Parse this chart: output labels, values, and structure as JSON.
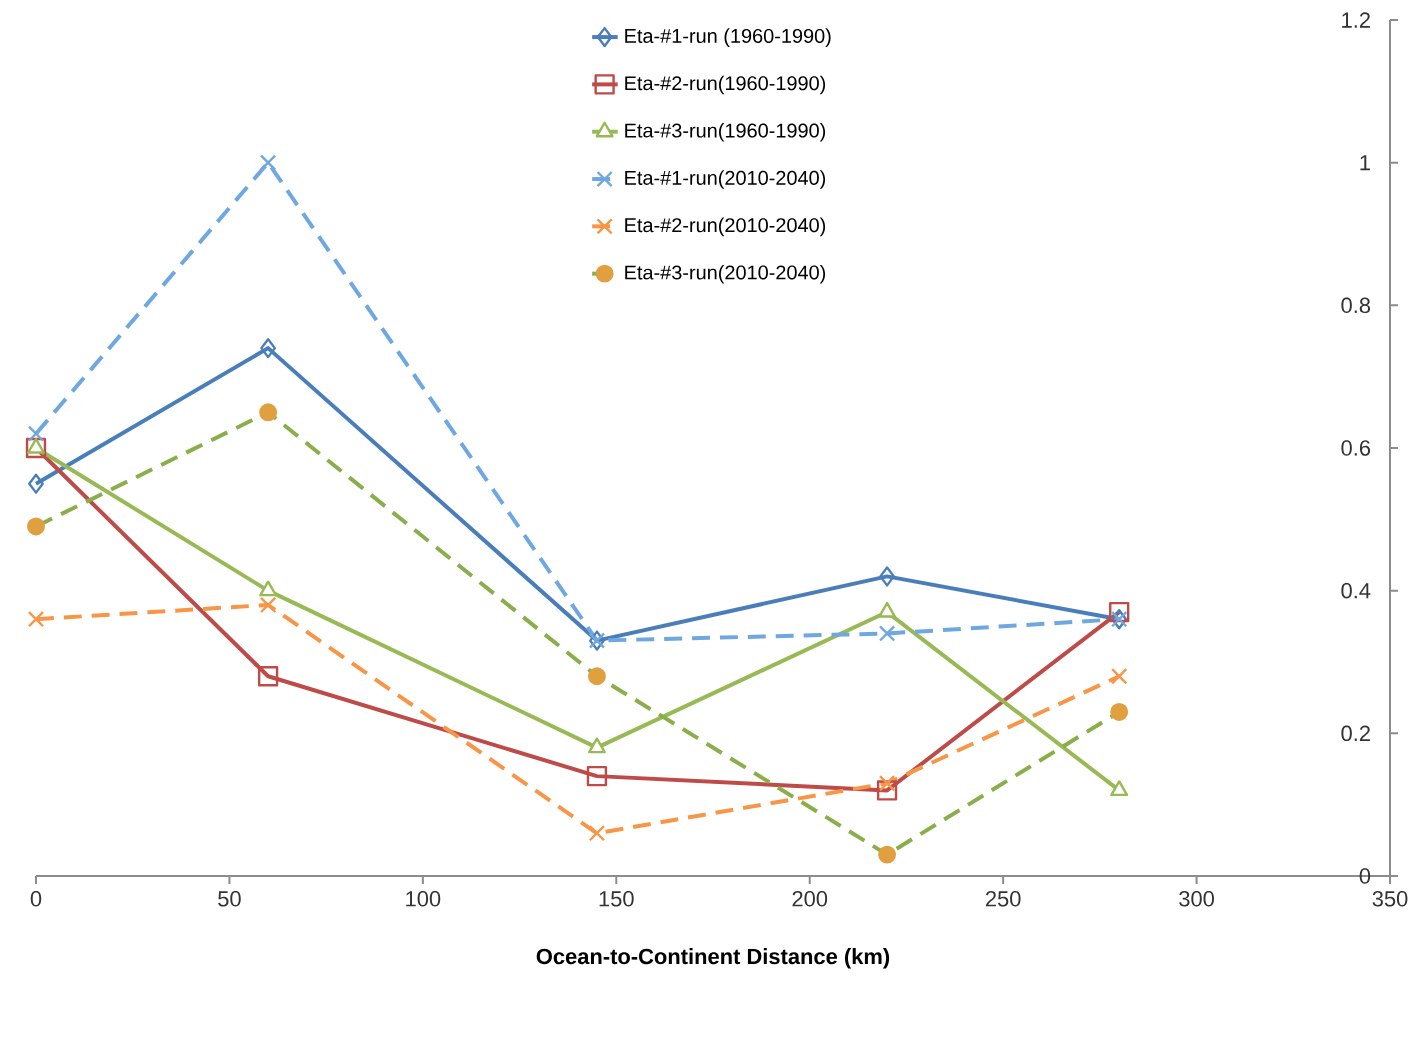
{
  "chart_data": {
    "type": "line",
    "xlabel": "Ocean-to-Continent Distance (km)",
    "x": [
      0,
      60,
      145,
      220,
      280
    ],
    "series": [
      {
        "name": "Eta-#1-run (1960-1990)",
        "color": "#4a7ebb",
        "marker": "diamond",
        "line_style": "solid",
        "values": [
          0.55,
          0.74,
          0.33,
          0.42,
          0.36
        ]
      },
      {
        "name": "Eta-#2-run(1960-1990)",
        "color": "#be4b48",
        "marker": "square",
        "line_style": "solid",
        "values": [
          0.6,
          0.28,
          0.14,
          0.12,
          0.37
        ]
      },
      {
        "name": "Eta-#3-run(1960-1990)",
        "color": "#98b954",
        "marker": "triangle",
        "line_style": "solid",
        "values": [
          0.6,
          0.4,
          0.18,
          0.37,
          0.12
        ]
      },
      {
        "name": "Eta-#1-run(2010-2040)",
        "color": "#6fa8e0",
        "marker": "cross",
        "line_style": "dashed",
        "values": [
          0.62,
          1.0,
          0.33,
          0.34,
          0.36
        ]
      },
      {
        "name": "Eta-#2-run(2010-2040)",
        "color": "#f79646",
        "marker": "cross",
        "line_style": "dashed",
        "values": [
          0.36,
          0.38,
          0.06,
          0.13,
          0.28
        ]
      },
      {
        "name": "Eta-#3-run(2010-2040)",
        "color": "#8aae4a",
        "marker": "circle",
        "line_style": "dashed",
        "colors": [
          "#e0a040",
          "#e0a040",
          "#e0a040",
          "#e0a040",
          "#e0a040"
        ],
        "values": [
          0.49,
          0.65,
          0.28,
          0.03,
          0.23
        ]
      }
    ],
    "xlim": [
      0,
      350
    ],
    "xticks": [
      0,
      50,
      100,
      150,
      200,
      250,
      300,
      350
    ],
    "ylim": [
      0,
      1.2
    ],
    "yticks": [
      0,
      0.2,
      0.4,
      0.6,
      0.8,
      1,
      1.2
    ],
    "grid": false,
    "legend": "top"
  }
}
